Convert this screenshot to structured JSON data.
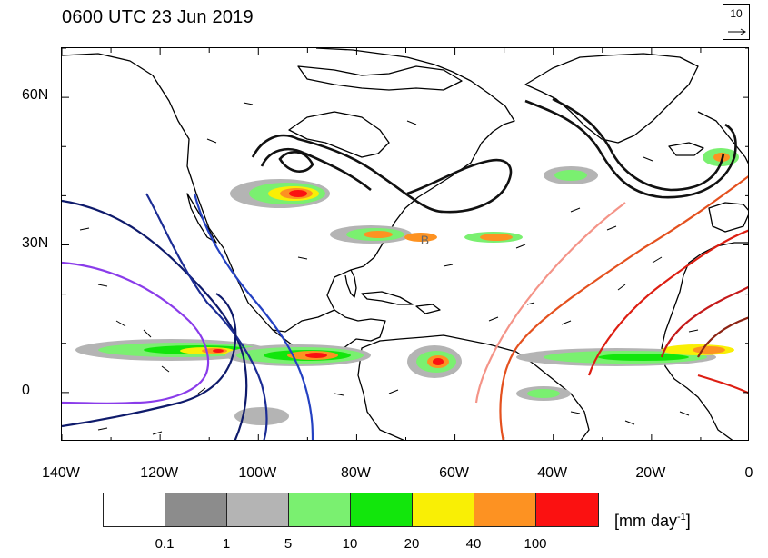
{
  "title": "0600 UTC 23 Jun 2019",
  "reference_vector": {
    "magnitude": "10",
    "direction": "east"
  },
  "map": {
    "projection": "equirectangular",
    "lon_range": [
      -140,
      0
    ],
    "lat_range": [
      -10,
      70
    ],
    "lat_ticks": [
      {
        "value": 60,
        "label": "60N"
      },
      {
        "value": 30,
        "label": "30N"
      },
      {
        "value": 0,
        "label": "0"
      }
    ],
    "lon_ticks": [
      {
        "value": -140,
        "label": "140W"
      },
      {
        "value": -120,
        "label": "120W"
      },
      {
        "value": -100,
        "label": "100W"
      },
      {
        "value": -80,
        "label": "80W"
      },
      {
        "value": -60,
        "label": "60W"
      },
      {
        "value": -40,
        "label": "40W"
      },
      {
        "value": -20,
        "label": "20W"
      },
      {
        "value": 0,
        "label": "0"
      }
    ],
    "marker": {
      "label": "B",
      "lon": -67,
      "lat": 31
    }
  },
  "colorbar": {
    "boundaries": [
      "0.1",
      "1",
      "5",
      "10",
      "20",
      "40",
      "100"
    ],
    "colors": [
      "#ffffff",
      "#8c8c8c",
      "#b4b4b4",
      "#7af070",
      "#12e60c",
      "#f9ef05",
      "#fd9222",
      "#fb1111"
    ],
    "units_prefix": "[mm day",
    "units_exponent": "-1",
    "units_suffix": "]"
  },
  "contours": {
    "upper_level_colors": [
      "#0e1a6b",
      "#1b2c94",
      "#2441c2",
      "#1f49e8",
      "#8a3cea",
      "#a04ee8"
    ],
    "trough_colors": [
      "#111111"
    ],
    "high_colors": [
      "#f49488",
      "#e4511f",
      "#dd1e12",
      "#c51a1a",
      "#8c2414"
    ]
  }
}
